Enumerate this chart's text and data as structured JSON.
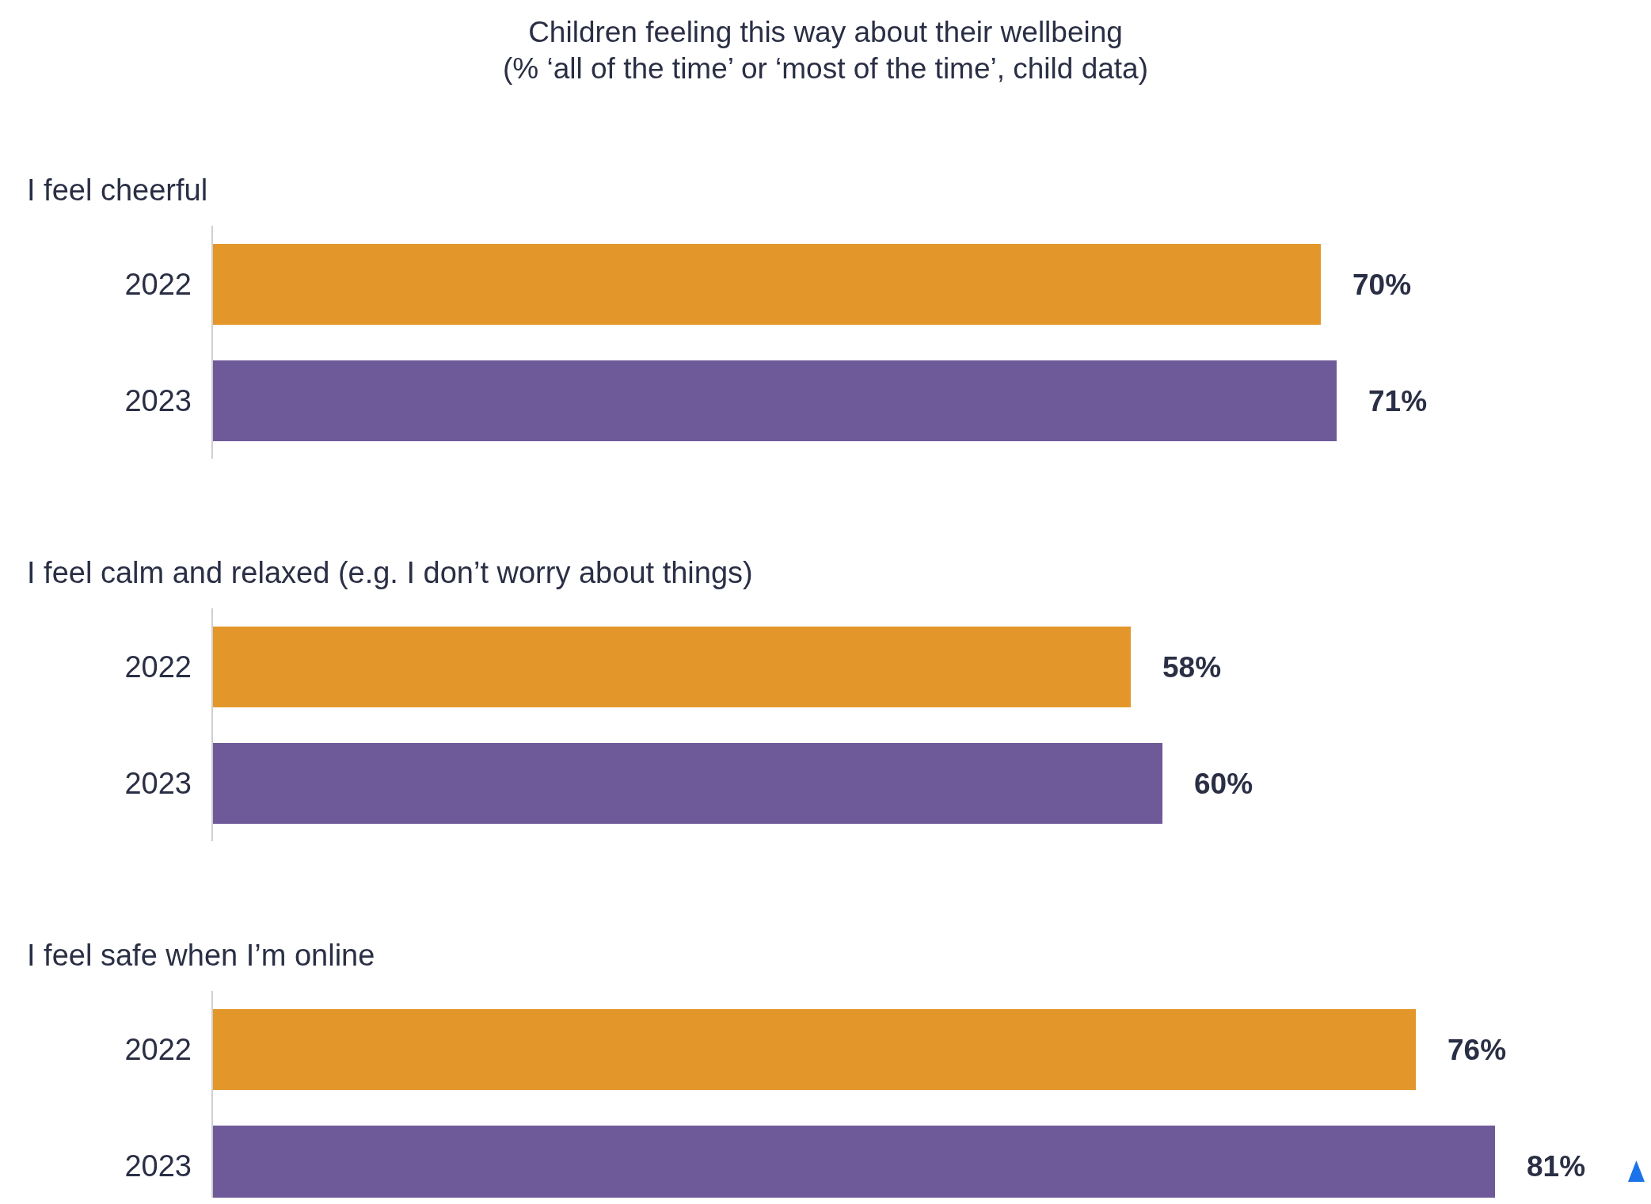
{
  "chart_data": [
    {
      "type": "other",
      "title": "Children feeling this way about their wellbeing",
      "subtitle": "(% ‘all of the time’ or ‘most of the time’, child data)"
    },
    {
      "type": "bar",
      "orientation": "horizontal",
      "title": "I feel cheerful",
      "categories": [
        "2022",
        "2023"
      ],
      "values": [
        70,
        71
      ],
      "value_labels": [
        "70%",
        "71%"
      ],
      "colors": [
        "#e3962a",
        "#6e5a99"
      ],
      "xlim": [
        0,
        90
      ],
      "tick_labels": "y"
    },
    {
      "type": "bar",
      "orientation": "horizontal",
      "title": "I feel calm and relaxed (e.g. I don’t worry about things)",
      "categories": [
        "2022",
        "2023"
      ],
      "values": [
        58,
        60
      ],
      "value_labels": [
        "58%",
        "60%"
      ],
      "colors": [
        "#e3962a",
        "#6e5a99"
      ],
      "xlim": [
        0,
        90
      ],
      "tick_labels": "y"
    },
    {
      "type": "bar",
      "orientation": "horizontal",
      "title": "I feel safe when I’m online",
      "categories": [
        "2022",
        "2023"
      ],
      "values": [
        76,
        81
      ],
      "value_labels": [
        "76%",
        "81%"
      ],
      "colors": [
        "#e3962a",
        "#6e5a99"
      ],
      "xlim": [
        0,
        90
      ],
      "tick_labels": "y"
    }
  ]
}
